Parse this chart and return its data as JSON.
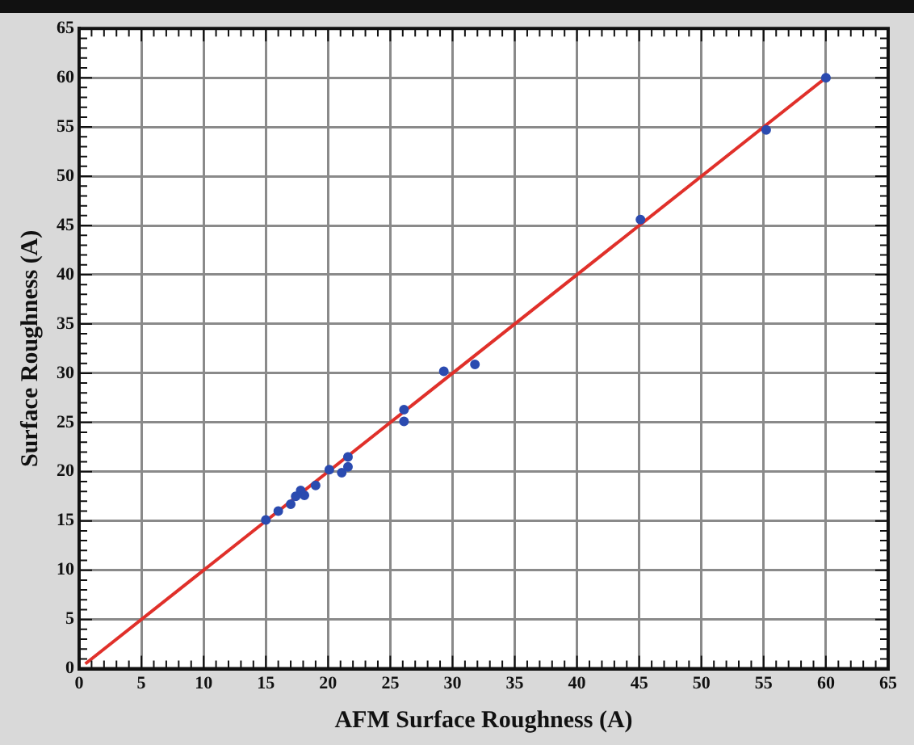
{
  "chart_data": {
    "type": "scatter",
    "xlabel": "AFM Surface Roughness (A)",
    "ylabel": "Surface Roughness (A)",
    "series": [
      {
        "color": "#2b4bb0",
        "marker": "circle",
        "x": [
          15,
          16,
          17,
          17.4,
          17.8,
          18.1,
          19,
          20.1,
          21.1,
          21.6,
          21.6,
          26.1,
          26.1,
          29.3,
          31.8,
          45.1,
          55.2,
          60
        ],
        "values": [
          15.1,
          16,
          16.7,
          17.5,
          18.1,
          17.6,
          18.6,
          20.2,
          19.9,
          20.5,
          21.5,
          26.3,
          25.1,
          30.2,
          30.9,
          45.6,
          54.7,
          60
        ]
      },
      {
        "type": "line",
        "color": "#e0302a",
        "marker": "none",
        "x": [
          0.5,
          60
        ],
        "values": [
          0.5,
          60
        ]
      }
    ],
    "xlim": [
      0,
      65
    ],
    "ylim": [
      0,
      65
    ],
    "xticks": [
      0,
      5,
      10,
      15,
      20,
      25,
      30,
      35,
      40,
      45,
      50,
      55,
      60,
      65
    ],
    "yticks": [
      0,
      5,
      10,
      15,
      20,
      25,
      30,
      35,
      40,
      45,
      50,
      55,
      60,
      65
    ],
    "grid": true,
    "legend": false
  }
}
